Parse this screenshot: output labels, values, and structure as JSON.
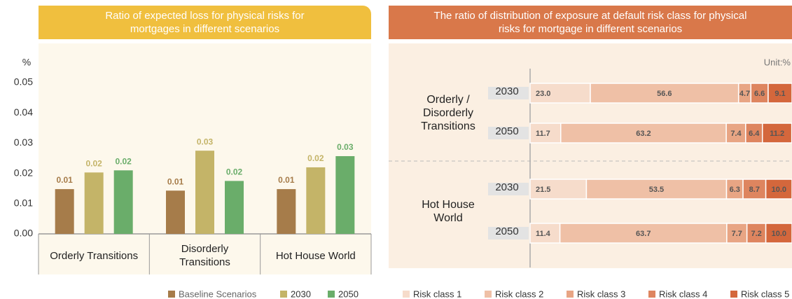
{
  "chart_data": [
    {
      "type": "bar",
      "title": "Ratio of expected loss for physical risks for mortgages in different scenarios",
      "y_label": "%",
      "categories": [
        "Orderly Transitions",
        "Disorderly Transitions",
        "Hot House World"
      ],
      "series": [
        {
          "name": "Baseline Scenarios",
          "color": "#a67c4a",
          "values": [
            0.0148,
            0.0143,
            0.0148
          ],
          "value_labels": [
            "0.01",
            "0.01",
            "0.01"
          ]
        },
        {
          "name": "2030",
          "color": "#c4b468",
          "values": [
            0.0203,
            0.0275,
            0.022
          ],
          "value_labels": [
            "0.02",
            "0.03",
            "0.02"
          ]
        },
        {
          "name": "2050",
          "color": "#6aad6a",
          "values": [
            0.021,
            0.0175,
            0.0257
          ],
          "value_labels": [
            "0.02",
            "0.02",
            "0.03"
          ]
        }
      ],
      "ylim": [
        0,
        0.05
      ],
      "yticks": [
        {
          "value": 0,
          "label": "0.00"
        },
        0.01,
        0.02,
        0.03,
        0.04,
        0.05
      ]
    },
    {
      "type": "stacked-bar-horizontal",
      "title": "The ratio of distribution of exposure at default risk class for physical risks for mortgage in different scenarios",
      "unit": "Unit:%",
      "groups": [
        {
          "label": "Orderly / Disorderly Transitions",
          "categories": [
            "2030",
            "2050"
          ]
        },
        {
          "label": "Hot House World",
          "categories": [
            "2030",
            "2050"
          ]
        }
      ],
      "series": [
        {
          "name": "Risk class 1",
          "color": "#f6dccb",
          "values": [
            23.0,
            11.7,
            21.5,
            11.4
          ],
          "value_labels": [
            "23.0",
            "11.7",
            "21.5",
            "11.4"
          ]
        },
        {
          "name": "Risk class 2",
          "color": "#efc0a6",
          "values": [
            56.6,
            63.2,
            53.5,
            63.7
          ],
          "value_labels": [
            "56.6",
            "63.2",
            "53.5",
            "63.7"
          ]
        },
        {
          "name": "Risk class 3",
          "color": "#e8a584",
          "values": [
            4.7,
            7.4,
            6.3,
            7.7
          ],
          "value_labels": [
            "4.7",
            "7.4",
            "6.3",
            "7.7"
          ]
        },
        {
          "name": "Risk class 4",
          "color": "#de855f",
          "values": [
            6.6,
            6.4,
            8.7,
            7.2
          ],
          "value_labels": [
            "6.6",
            "6.4",
            "8.7",
            "7.2"
          ]
        },
        {
          "name": "Risk class 5",
          "color": "#d4673c",
          "values": [
            9.1,
            11.2,
            10.0,
            10.0
          ],
          "value_labels": [
            "9.1",
            "11.2",
            "10.0",
            "10.0"
          ]
        }
      ],
      "xlim": [
        0,
        100
      ]
    }
  ]
}
